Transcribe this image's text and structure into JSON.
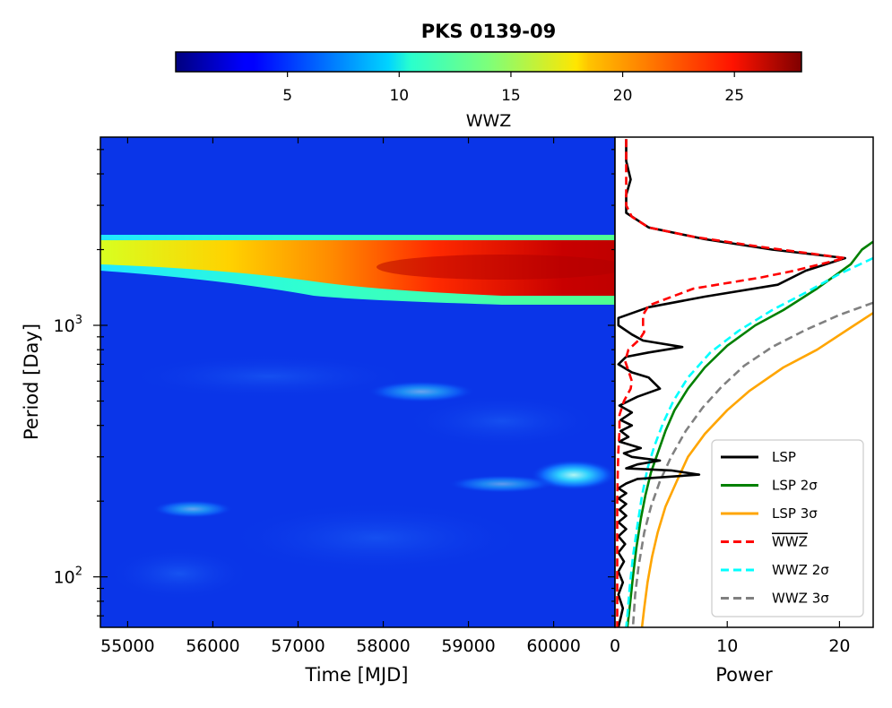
{
  "chart_data": [
    {
      "type": "heatmap",
      "title": "PKS 0139-09",
      "xlabel": "Time [MJD]",
      "ylabel": "Period [Day]",
      "xlim": [
        54680,
        60720
      ],
      "ylim": [
        63,
        5600
      ],
      "yscale": "log",
      "xticks": [
        55000,
        56000,
        57000,
        58000,
        59000,
        60000
      ],
      "xtick_labels": [
        "55000",
        "56000",
        "57000",
        "58000",
        "59000",
        "60000"
      ],
      "yticks_major": [
        100,
        1000
      ],
      "ytick_labels": [
        "10",
        "10"
      ],
      "ytick_exponents": [
        "2",
        "3"
      ],
      "colorbar": {
        "label": "WWZ",
        "range": [
          0,
          28
        ],
        "ticks": [
          5,
          10,
          15,
          20,
          25
        ],
        "tick_labels": [
          "5",
          "10",
          "15",
          "20",
          "25"
        ],
        "colormap": "jet"
      },
      "features": [
        {
          "name": "dominant band",
          "period_days": 1800,
          "peak_wwz": 27,
          "note": "strengthens toward later times"
        },
        {
          "name": "blob near 260 d",
          "time_mjd": 60100,
          "period_days": 255,
          "peak_wwz": 9
        },
        {
          "name": "blob near 530 d",
          "time_mjd": 58800,
          "period_days": 540,
          "peak_wwz": 5
        },
        {
          "name": "blob near 180 d",
          "time_mjd": 55700,
          "period_days": 180,
          "peak_wwz": 5
        }
      ]
    },
    {
      "type": "line",
      "xlabel": "Power",
      "xlim": [
        0,
        23
      ],
      "xticks": [
        0,
        10,
        20
      ],
      "xtick_labels": [
        "0",
        "10",
        "20"
      ],
      "series": [
        {
          "name": "LSP",
          "color": "#000000",
          "style": "solid",
          "points": [
            [
              1.0,
              5500
            ],
            [
              1.0,
              4500
            ],
            [
              1.4,
              3800
            ],
            [
              1.0,
              3300
            ],
            [
              1.0,
              2800
            ],
            [
              3.0,
              2450
            ],
            [
              8,
              2200
            ],
            [
              14,
              2000
            ],
            [
              20.5,
              1850
            ],
            [
              17,
              1650
            ],
            [
              14.5,
              1450
            ],
            [
              8,
              1300
            ],
            [
              3,
              1180
            ],
            [
              0.3,
              1070
            ],
            [
              0.3,
              1000
            ],
            [
              1.5,
              920
            ],
            [
              2.5,
              870
            ],
            [
              6,
              820
            ],
            [
              3,
              780
            ],
            [
              1,
              750
            ],
            [
              0.3,
              700
            ],
            [
              1.5,
              650
            ],
            [
              3,
              620
            ],
            [
              4,
              560
            ],
            [
              2,
              520
            ],
            [
              0.4,
              480
            ],
            [
              1.5,
              450
            ],
            [
              0.5,
              420
            ],
            [
              1.5,
              400
            ],
            [
              0.5,
              380
            ],
            [
              1.2,
              360
            ],
            [
              0.4,
              345
            ],
            [
              2.3,
              325
            ],
            [
              0.8,
              310
            ],
            [
              1.5,
              300
            ],
            [
              4,
              290
            ],
            [
              2,
              280
            ],
            [
              1,
              270
            ],
            [
              5,
              265
            ],
            [
              7.5,
              255
            ],
            [
              2,
              245
            ],
            [
              1,
              235
            ],
            [
              0.3,
              225
            ],
            [
              1,
              215
            ],
            [
              0.3,
              205
            ],
            [
              1,
              195
            ],
            [
              0.4,
              185
            ],
            [
              1,
              175
            ],
            [
              0.3,
              165
            ],
            [
              1,
              155
            ],
            [
              0.3,
              145
            ],
            [
              0.9,
              135
            ],
            [
              0.3,
              125
            ],
            [
              0.8,
              115
            ],
            [
              0.3,
              105
            ],
            [
              0.7,
              95
            ],
            [
              0.3,
              85
            ],
            [
              0.7,
              75
            ],
            [
              0.3,
              63
            ]
          ]
        },
        {
          "name": "LSP 2σ",
          "color": "#008000",
          "style": "solid",
          "points": [
            [
              23,
              2150
            ],
            [
              22,
              2000
            ],
            [
              21,
              1750
            ],
            [
              18,
              1400
            ],
            [
              15,
              1150
            ],
            [
              12.5,
              1000
            ],
            [
              10,
              830
            ],
            [
              8,
              680
            ],
            [
              6.5,
              560
            ],
            [
              5.3,
              460
            ],
            [
              4.5,
              380
            ],
            [
              3.8,
              310
            ],
            [
              3.2,
              260
            ],
            [
              2.7,
              210
            ],
            [
              2.3,
              170
            ],
            [
              1.9,
              130
            ],
            [
              1.6,
              100
            ],
            [
              1.3,
              75
            ],
            [
              1.1,
              63
            ]
          ]
        },
        {
          "name": "LSP 3σ",
          "color": "#ffa500",
          "style": "solid",
          "points": [
            [
              23,
              1120
            ],
            [
              21,
              980
            ],
            [
              18,
              800
            ],
            [
              15,
              680
            ],
            [
              12,
              550
            ],
            [
              10,
              460
            ],
            [
              8,
              370
            ],
            [
              6.5,
              300
            ],
            [
              5.5,
              240
            ],
            [
              4.5,
              190
            ],
            [
              3.8,
              150
            ],
            [
              3.3,
              120
            ],
            [
              2.9,
              95
            ],
            [
              2.6,
              75
            ],
            [
              2.4,
              63
            ]
          ]
        },
        {
          "name": "WWZ",
          "color": "#ff0000",
          "style": "dashed",
          "points": [
            [
              1.0,
              5500
            ],
            [
              1.0,
              4500
            ],
            [
              1.0,
              3600
            ],
            [
              1.0,
              3000
            ],
            [
              1.5,
              2700
            ],
            [
              3.0,
              2450
            ],
            [
              7,
              2250
            ],
            [
              13,
              2050
            ],
            [
              20.5,
              1850
            ],
            [
              16,
              1650
            ],
            [
              13,
              1550
            ],
            [
              7,
              1400
            ],
            [
              3,
              1200
            ],
            [
              2.5,
              1100
            ],
            [
              2.5,
              1050
            ],
            [
              2.5,
              990
            ],
            [
              2.6,
              940
            ],
            [
              2.2,
              880
            ],
            [
              1.2,
              800
            ],
            [
              0.9,
              720
            ],
            [
              1.2,
              660
            ],
            [
              1.5,
              600
            ],
            [
              1.4,
              560
            ],
            [
              0.8,
              500
            ],
            [
              0.4,
              440
            ],
            [
              0.4,
              380
            ],
            [
              0.3,
              320
            ],
            [
              0.25,
              260
            ],
            [
              0.2,
              200
            ],
            [
              0.2,
              130
            ],
            [
              0.2,
              63
            ]
          ]
        },
        {
          "name": "WWZ 2σ",
          "color": "#00ffff",
          "style": "dashed",
          "points": [
            [
              23,
              1850
            ],
            [
              20,
              1600
            ],
            [
              17,
              1350
            ],
            [
              14,
              1150
            ],
            [
              11,
              950
            ],
            [
              8.5,
              780
            ],
            [
              6.5,
              620
            ],
            [
              5.2,
              500
            ],
            [
              4.3,
              410
            ],
            [
              3.5,
              330
            ],
            [
              2.9,
              270
            ],
            [
              2.4,
              210
            ],
            [
              2.0,
              160
            ],
            [
              1.6,
              120
            ],
            [
              1.3,
              90
            ],
            [
              1.1,
              70
            ],
            [
              1.0,
              63
            ]
          ]
        },
        {
          "name": "WWZ 3σ",
          "color": "#808080",
          "style": "dashed",
          "points": [
            [
              23,
              1230
            ],
            [
              20,
              1100
            ],
            [
              17,
              960
            ],
            [
              14,
              820
            ],
            [
              11.5,
              690
            ],
            [
              9.5,
              570
            ],
            [
              7.8,
              470
            ],
            [
              6.3,
              380
            ],
            [
              5.0,
              300
            ],
            [
              4.0,
              240
            ],
            [
              3.2,
              190
            ],
            [
              2.6,
              150
            ],
            [
              2.1,
              110
            ],
            [
              1.8,
              85
            ],
            [
              1.6,
              63
            ]
          ]
        }
      ],
      "legend": {
        "position": "lower right",
        "entries": [
          {
            "label": "LSP",
            "color": "#000000",
            "style": "solid"
          },
          {
            "label": "LSP 2σ",
            "color": "#008000",
            "style": "solid"
          },
          {
            "label": "LSP 3σ",
            "color": "#ffa500",
            "style": "solid"
          },
          {
            "label": "WWZ",
            "color": "#ff0000",
            "style": "dashed",
            "overline": true
          },
          {
            "label": "WWZ 2σ",
            "color": "#00ffff",
            "style": "dashed"
          },
          {
            "label": "WWZ 3σ",
            "color": "#808080",
            "style": "dashed"
          }
        ]
      }
    }
  ]
}
